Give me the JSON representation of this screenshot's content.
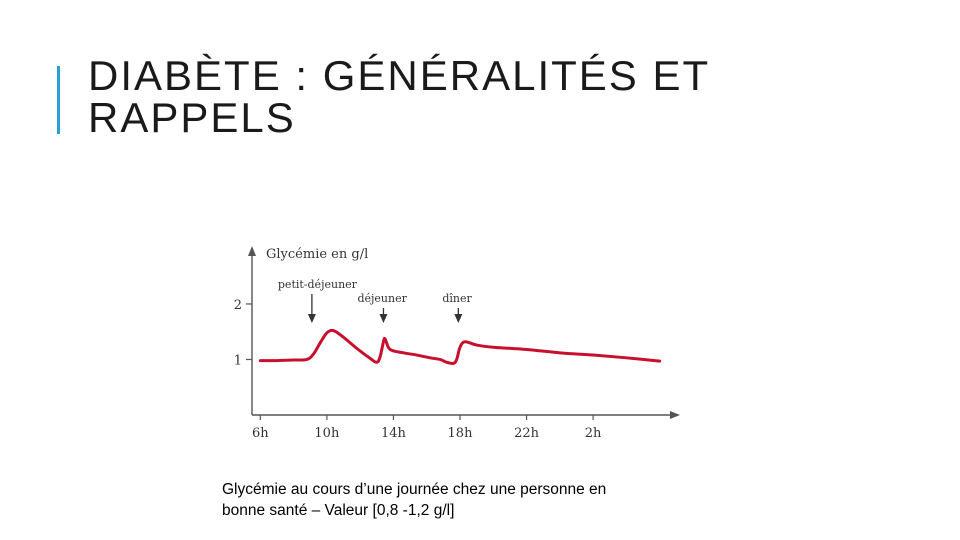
{
  "slide": {
    "title": "DIABÈTE : GÉNÉRALITÉS ET RAPPELS",
    "caption": "Glycémie au cours d’une journée chez une personne en bonne santé – Valeur [0,8 -1,2 g/l]",
    "accent_color": "#2aa0d8"
  },
  "chart_data": {
    "type": "line",
    "ylabel": "Glycémie en g/l",
    "xlabel": "",
    "x_ticks": [
      "6h",
      "10h",
      "14h",
      "18h",
      "22h",
      "2h"
    ],
    "y_ticks": [
      1,
      2
    ],
    "ylim": [
      0,
      2.9
    ],
    "xlim": [
      5.5,
      30.5
    ],
    "grid": false,
    "line_color": "#c8102e",
    "meal_markers": [
      {
        "label": "petit-déjeuner",
        "x": 9.1
      },
      {
        "label": "déjeuner",
        "x": 13.4
      },
      {
        "label": "dîner",
        "x": 17.9
      }
    ],
    "series": [
      {
        "x": [
          6,
          7,
          8,
          8.8,
          9.2,
          9.6,
          10.0,
          10.4,
          11.0,
          11.8,
          12.6,
          13.0,
          13.2,
          13.4,
          13.5,
          13.8,
          14.6,
          15.4,
          16.2,
          16.8,
          17.2,
          17.6,
          17.8,
          18.0,
          18.3,
          19.0,
          20.0,
          22.0,
          24.0,
          26.0,
          28.0,
          30.0
        ],
        "y": [
          0.98,
          0.98,
          0.99,
          1.0,
          1.1,
          1.3,
          1.48,
          1.52,
          1.4,
          1.2,
          1.02,
          0.95,
          1.05,
          1.32,
          1.37,
          1.18,
          1.12,
          1.08,
          1.03,
          1.0,
          0.95,
          0.93,
          1.0,
          1.22,
          1.32,
          1.26,
          1.22,
          1.18,
          1.12,
          1.08,
          1.03,
          0.97
        ]
      }
    ]
  }
}
